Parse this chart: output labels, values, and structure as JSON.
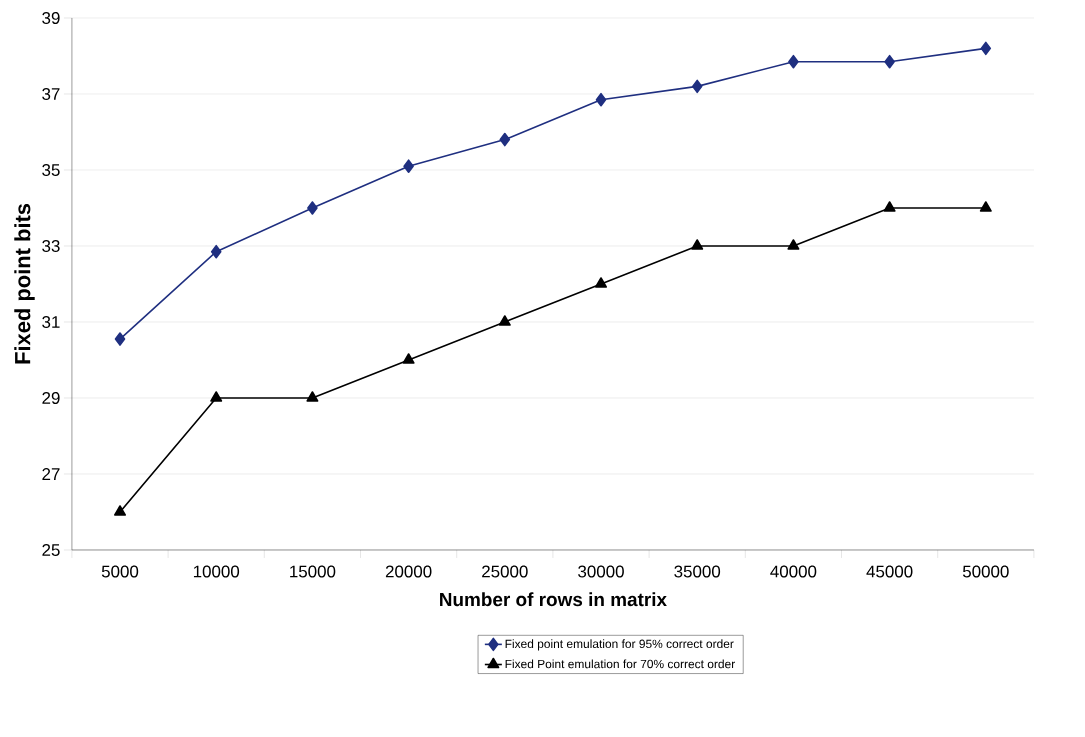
{
  "chart_data": {
    "type": "line",
    "xlabel": "Number of rows in matrix",
    "ylabel": "Fixed point bits",
    "categories": [
      "5000",
      "10000",
      "15000",
      "20000",
      "25000",
      "30000",
      "35000",
      "40000",
      "45000",
      "50000"
    ],
    "series": [
      {
        "name": "Fixed point emulation for 95% correct order",
        "color": "#1f2f80",
        "marker": "diamond",
        "values": [
          30.55,
          32.85,
          34.0,
          35.1,
          35.8,
          36.85,
          37.2,
          37.85,
          37.85,
          38.2
        ]
      },
      {
        "name": "Fixed Point emulation for 70% correct order",
        "color": "#000000",
        "marker": "triangle",
        "values": [
          26,
          29,
          29,
          30,
          31,
          32,
          33,
          33,
          34,
          34
        ]
      }
    ],
    "ylim": [
      25,
      39
    ],
    "yticks": [
      25,
      27,
      29,
      31,
      33,
      35,
      37,
      39
    ],
    "grid": "y",
    "legend": "bottom",
    "line_style": "solid"
  }
}
